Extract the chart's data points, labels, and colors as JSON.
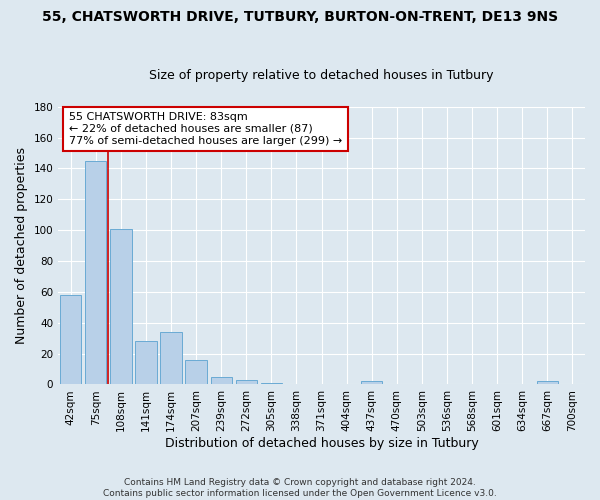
{
  "title": "55, CHATSWORTH DRIVE, TUTBURY, BURTON-ON-TRENT, DE13 9NS",
  "subtitle": "Size of property relative to detached houses in Tutbury",
  "xlabel": "Distribution of detached houses by size in Tutbury",
  "ylabel": "Number of detached properties",
  "categories": [
    "42sqm",
    "75sqm",
    "108sqm",
    "141sqm",
    "174sqm",
    "207sqm",
    "239sqm",
    "272sqm",
    "305sqm",
    "338sqm",
    "371sqm",
    "404sqm",
    "437sqm",
    "470sqm",
    "503sqm",
    "536sqm",
    "568sqm",
    "601sqm",
    "634sqm",
    "667sqm",
    "700sqm"
  ],
  "values": [
    58,
    145,
    101,
    28,
    34,
    16,
    5,
    3,
    1,
    0,
    0,
    0,
    2,
    0,
    0,
    0,
    0,
    0,
    0,
    2,
    0
  ],
  "bar_color": "#b8d0e8",
  "bar_edge_color": "#6aaad4",
  "red_line_x": 1.5,
  "annotation_line1": "55 CHATSWORTH DRIVE: 83sqm",
  "annotation_line2": "← 22% of detached houses are smaller (87)",
  "annotation_line3": "77% of semi-detached houses are larger (299) →",
  "annotation_box_color": "#ffffff",
  "annotation_box_edge_color": "#cc0000",
  "ylim": [
    0,
    180
  ],
  "yticks": [
    0,
    20,
    40,
    60,
    80,
    100,
    120,
    140,
    160,
    180
  ],
  "footer_line1": "Contains HM Land Registry data © Crown copyright and database right 2024.",
  "footer_line2": "Contains public sector information licensed under the Open Government Licence v3.0.",
  "bg_color": "#dde8f0",
  "plot_bg_color": "#dde8f0",
  "grid_color": "#ffffff",
  "title_fontsize": 10,
  "subtitle_fontsize": 9,
  "axis_label_fontsize": 9,
  "tick_fontsize": 7.5
}
